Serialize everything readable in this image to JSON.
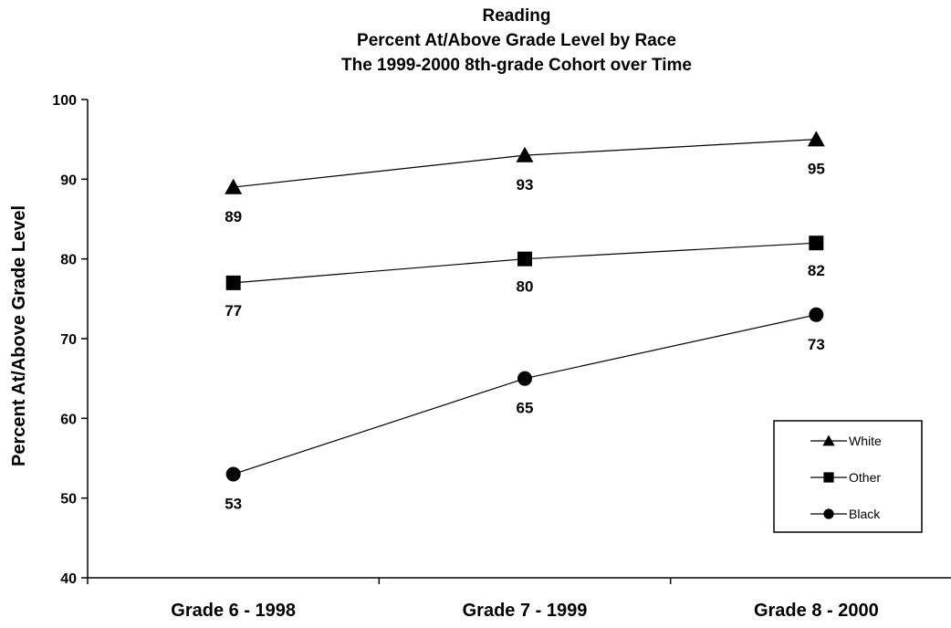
{
  "chart_data": {
    "type": "line",
    "title": [
      "Reading",
      "Percent At/Above Grade Level by Race",
      "The 1999-2000 8th-grade Cohort over Time"
    ],
    "xlabel": "",
    "ylabel": "Percent At/Above Grade Level",
    "ylim": [
      40,
      100
    ],
    "yticks": [
      "40",
      "50",
      "60",
      "70",
      "80",
      "90",
      "100"
    ],
    "categories": [
      "Grade 6 - 1998",
      "Grade 7 - 1999",
      "Grade 8 - 2000"
    ],
    "grid": false,
    "legend_position": "bottom-right",
    "series": [
      {
        "name": "White",
        "marker": "triangle",
        "color": "#000000",
        "values": [
          89,
          93,
          95
        ]
      },
      {
        "name": "Other",
        "marker": "square",
        "color": "#000000",
        "values": [
          77,
          80,
          82
        ]
      },
      {
        "name": "Black",
        "marker": "circle",
        "color": "#000000",
        "values": [
          53,
          65,
          73
        ]
      }
    ]
  }
}
